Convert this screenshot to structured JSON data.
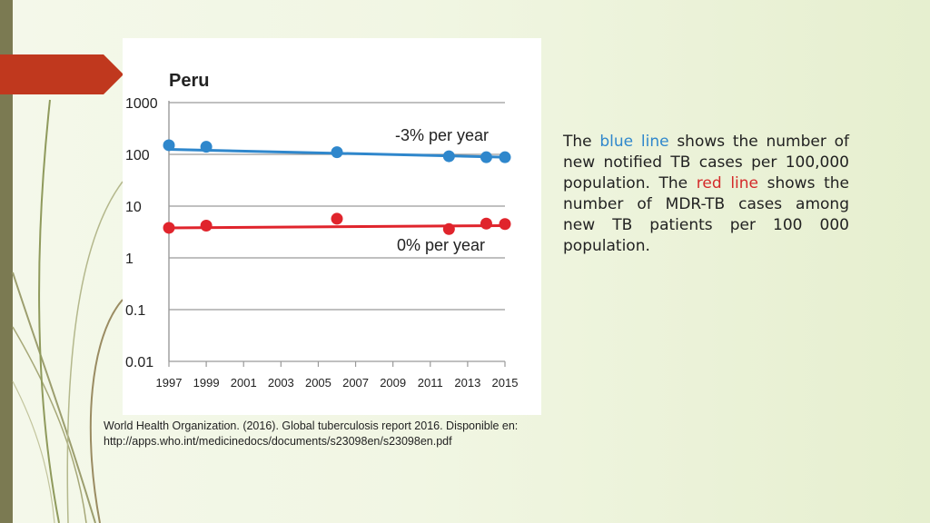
{
  "description": {
    "part1": "The ",
    "blue_term": "blue line",
    "part2": " shows the number of new notified TB cases per 100,000 population. The ",
    "red_term": "red line",
    "part3": " shows the number of MDR-TB cases among new TB patients per 100 000 population."
  },
  "citation": {
    "line1": "World Health Organization. (2016). Global tuberculosis report 2016. Disponible en:",
    "line2": "http://apps.who.int/medicinedocs/documents/s23098en/s23098en.pdf"
  },
  "colors": {
    "blue": "#2f87cc",
    "red": "#e0242c",
    "arrow": "#c0381e",
    "sidebar": "#7b7a52",
    "grid": "#9a9a9a"
  },
  "chart_data": {
    "type": "scatter",
    "title": "Peru",
    "yscale": "log",
    "ylim": [
      0.01,
      1000
    ],
    "xlim": [
      1997,
      2015
    ],
    "x_ticks": [
      "1997",
      "1999",
      "2001",
      "2003",
      "2005",
      "2007",
      "2009",
      "2011",
      "2013",
      "2015"
    ],
    "y_ticks": [
      "1000",
      "100",
      "10",
      "1",
      "0.1",
      "0.01"
    ],
    "grid": true,
    "series": [
      {
        "color": "#2f87cc",
        "x": [
          1997,
          1999,
          2006,
          2012,
          2014,
          2015
        ],
        "y": [
          150,
          140,
          110,
          92,
          88,
          88
        ],
        "trend": [
          [
            1997,
            125
          ],
          [
            2015,
            88
          ]
        ],
        "annotation": "-3% per year"
      },
      {
        "color": "#e0242c",
        "x": [
          1997,
          1999,
          2006,
          2012,
          2014,
          2015
        ],
        "y": [
          3.8,
          4.2,
          5.7,
          3.6,
          4.6,
          4.5
        ],
        "trend": [
          [
            1997,
            3.8
          ],
          [
            2015,
            4.2
          ]
        ],
        "annotation": "0% per year"
      }
    ]
  }
}
